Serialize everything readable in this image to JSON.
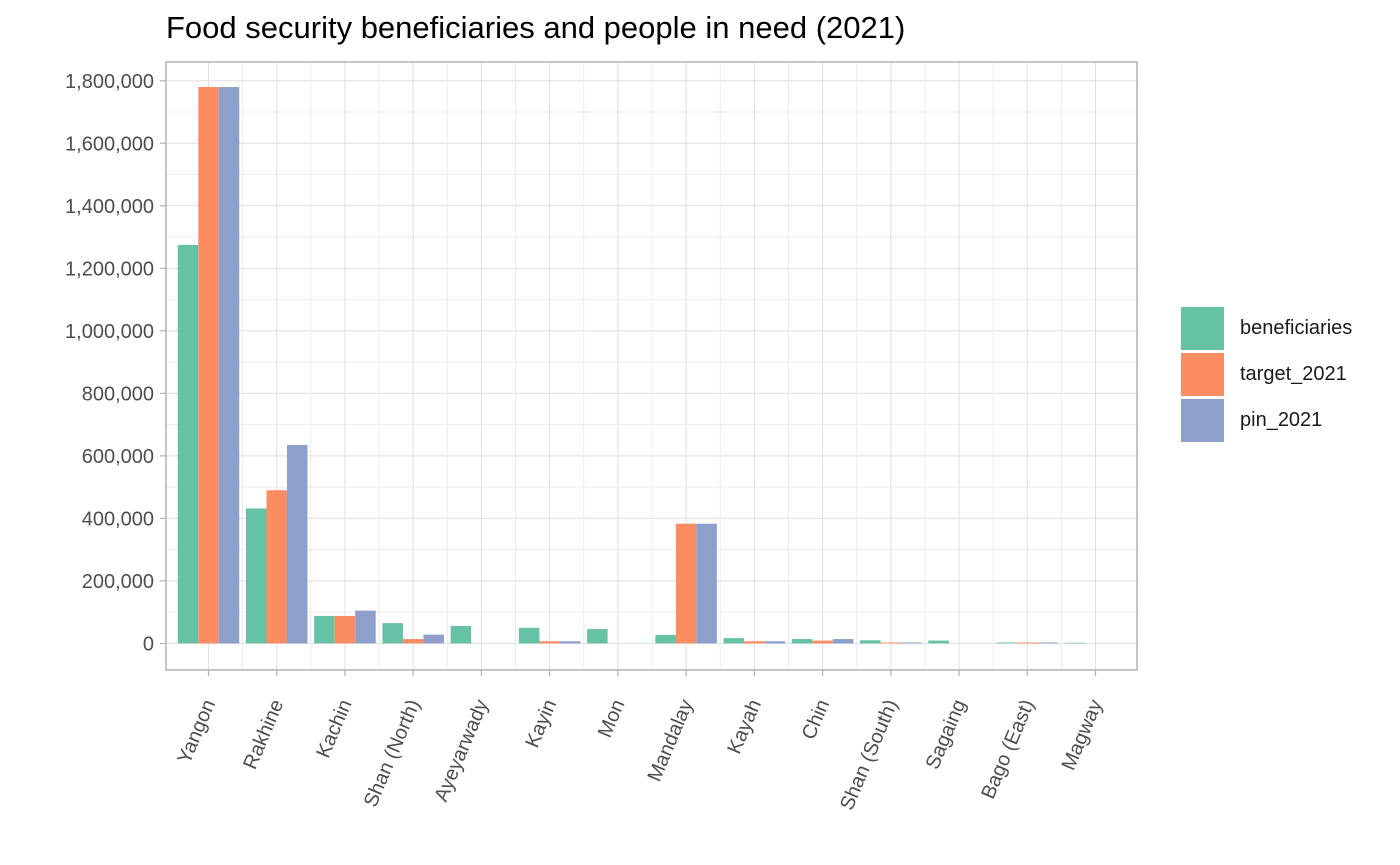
{
  "chart_data": {
    "type": "bar",
    "title": "Food security beneficiaries and people in need (2021)",
    "xlabel": "",
    "ylabel": "",
    "categories": [
      "Yangon",
      "Rakhine",
      "Kachin",
      "Shan (North)",
      "Ayeyarwady",
      "Kayin",
      "Mon",
      "Mandalay",
      "Kayah",
      "Chin",
      "Shan (South)",
      "Sagaing",
      "Bago (East)",
      "Magway"
    ],
    "series": [
      {
        "name": "beneficiaries",
        "color": "#66c2a5",
        "values": [
          1275000,
          432000,
          88000,
          65000,
          56000,
          50000,
          46000,
          27000,
          17000,
          14000,
          10000,
          9000,
          3000,
          2000
        ]
      },
      {
        "name": "target_2021",
        "color": "#fc8d62",
        "values": [
          1780000,
          490000,
          88000,
          14000,
          null,
          7000,
          null,
          383000,
          7000,
          9000,
          3000,
          null,
          3000,
          null
        ]
      },
      {
        "name": "pin_2021",
        "color": "#8da0cb",
        "values": [
          1780000,
          635000,
          105000,
          28000,
          null,
          7000,
          null,
          383000,
          7000,
          14000,
          3000,
          null,
          3000,
          null
        ]
      }
    ],
    "ylim": [
      -85000,
      1860000
    ],
    "y_ticks": [
      0,
      200000,
      400000,
      600000,
      800000,
      1000000,
      1200000,
      1400000,
      1600000,
      1800000
    ],
    "y_tick_labels": [
      "0",
      "200,000",
      "400,000",
      "600,000",
      "800,000",
      "1,000,000",
      "1,200,000",
      "1,400,000",
      "1,600,000",
      "1,800,000"
    ],
    "grid": true,
    "legend_position": "right"
  }
}
